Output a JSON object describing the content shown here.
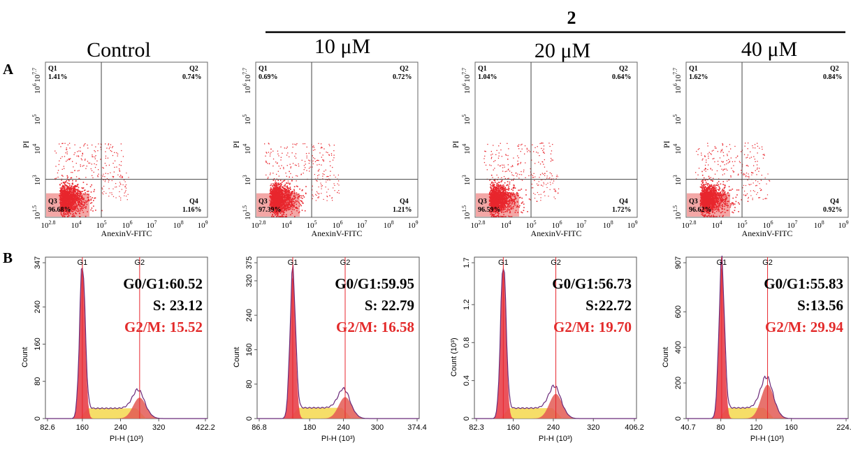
{
  "figure": {
    "panel_a_label": "A",
    "panel_b_label": "B",
    "compound_label": "2",
    "conditions": [
      "Control",
      "10 μM",
      "20 μM",
      "40 μM"
    ]
  },
  "colors": {
    "dot": "#e8262d",
    "dot_dense": "#e21b22",
    "gate_box": "#f3a7a6",
    "g1_fill": "#e8404a",
    "s_fill": "#f5d84e",
    "g2_fill": "#e35a55",
    "curve": "#6a2a7a",
    "red_text": "#e32b2b"
  },
  "chart_data": [
    {
      "type": "scatter",
      "panel": "A",
      "title": "Control",
      "xlabel": "AnexinV-FITC",
      "ylabel": "PI",
      "x_ticks": [
        "10^2.8",
        "10^4",
        "10^5",
        "10^6",
        "10^7",
        "10^8",
        "10^9"
      ],
      "y_ticks": [
        "10^1.5",
        "10^3",
        "10^4",
        "10^5",
        "10^6",
        "10^7.7"
      ],
      "quadrants": {
        "Q1": "1.41%",
        "Q2": "0.74%",
        "Q3": "96.68%",
        "Q4": "1.16%"
      }
    },
    {
      "type": "scatter",
      "panel": "A",
      "title": "10 μM",
      "xlabel": "AnexinV-FITC",
      "ylabel": "PI",
      "x_ticks": [
        "10^2.8",
        "10^4",
        "10^5",
        "10^6",
        "10^7",
        "10^8",
        "10^9"
      ],
      "y_ticks": [
        "10^1.5",
        "10^3",
        "10^4",
        "10^5",
        "10^6",
        "10^7.7"
      ],
      "quadrants": {
        "Q1": "0.69%",
        "Q2": "0.72%",
        "Q3": "97.39%",
        "Q4": "1.21%"
      }
    },
    {
      "type": "scatter",
      "panel": "A",
      "title": "20 μM",
      "xlabel": "AnexinV-FITC",
      "ylabel": "PI",
      "x_ticks": [
        "10^2.8",
        "10^4",
        "10^5",
        "10^6",
        "10^7",
        "10^8",
        "10^9"
      ],
      "y_ticks": [
        "10^1.5",
        "10^3",
        "10^4",
        "10^5",
        "10^6",
        "10^7.7"
      ],
      "quadrants": {
        "Q1": "1.04%",
        "Q2": "0.64%",
        "Q3": "96.59%",
        "Q4": "1.72%"
      }
    },
    {
      "type": "scatter",
      "panel": "A",
      "title": "40 μM",
      "xlabel": "AnexinV-FITC",
      "ylabel": "PI",
      "x_ticks": [
        "10^2.8",
        "10^4",
        "10^5",
        "10^6",
        "10^7",
        "10^8",
        "10^9"
      ],
      "y_ticks": [
        "10^1.5",
        "10^3",
        "10^4",
        "10^5",
        "10^6",
        "10^7.7"
      ],
      "quadrants": {
        "Q1": "1.62%",
        "Q2": "0.84%",
        "Q3": "96.62%",
        "Q4": "0.92%"
      }
    },
    {
      "type": "area",
      "panel": "B",
      "xlabel": "PI-H (10³)",
      "ylabel": "Count",
      "x_ticks": [
        "82.6",
        "160",
        "240",
        "320",
        "422.2"
      ],
      "xlim": [
        82.6,
        422.2
      ],
      "y_ticks": [
        "0",
        "80",
        "160",
        "240",
        "347"
      ],
      "ylim": [
        0,
        347
      ],
      "g1_peak": 160,
      "g2_peak": 280,
      "g1_label": "G1",
      "g2_label": "G2",
      "g1_height": 330,
      "g2_height": 45,
      "s_level": 22,
      "stats": {
        "g0g1": "G0/G1:60.52",
        "s": "S: 23.12",
        "g2m": "G2/M: 15.52"
      }
    },
    {
      "type": "area",
      "panel": "B",
      "xlabel": "PI-H (10³)",
      "ylabel": "Count",
      "x_ticks": [
        "86.8",
        "180",
        "240",
        "300",
        "374.4"
      ],
      "xlim": [
        86.8,
        374.4
      ],
      "y_ticks": [
        "0",
        "80",
        "160",
        "240",
        "320",
        "375"
      ],
      "ylim": [
        0,
        375
      ],
      "g1_peak": 150,
      "g2_peak": 243,
      "g1_label": "G1",
      "g2_label": "G2",
      "g1_height": 338,
      "g2_height": 50,
      "s_level": 25,
      "stats": {
        "g0g1": "G0/G1:59.95",
        "s": "S: 22.79",
        "g2m": "G2/M: 16.58"
      }
    },
    {
      "type": "area",
      "panel": "B",
      "xlabel": "PI-H (10³)",
      "ylabel": "Count (10³)",
      "x_ticks": [
        "82.3",
        "160",
        "240",
        "320",
        "406.2"
      ],
      "xlim": [
        82.3,
        406.2
      ],
      "y_ticks": [
        "0",
        "0.4",
        "0.8",
        "1.2",
        "1.7"
      ],
      "ylim": [
        0,
        1.7
      ],
      "g1_peak": 140,
      "g2_peak": 245,
      "g1_label": "G1",
      "g2_label": "G2",
      "g1_height": 1.62,
      "g2_height": 0.26,
      "s_level": 0.11,
      "stats": {
        "g0g1": "G0/G1:56.73",
        "s": "S:22.72",
        "g2m": "G2/M: 19.70"
      }
    },
    {
      "type": "area",
      "panel": "B",
      "xlabel": "PI-H (10³)",
      "ylabel": "Count",
      "x_ticks": [
        "40.7",
        "80",
        "120",
        "160",
        "224.4"
      ],
      "xlim": [
        40.7,
        224.4
      ],
      "y_ticks": [
        "0",
        "200",
        "400",
        "600",
        "907"
      ],
      "ylim": [
        0,
        907
      ],
      "g1_peak": 81,
      "g2_peak": 133,
      "g1_label": "G1",
      "g2_label": "G2",
      "g1_height": 870,
      "g2_height": 190,
      "s_level": 60,
      "stats": {
        "g0g1": "G0/G1:55.83",
        "s": "S:13.56",
        "g2m": "G2/M: 29.94"
      }
    }
  ]
}
